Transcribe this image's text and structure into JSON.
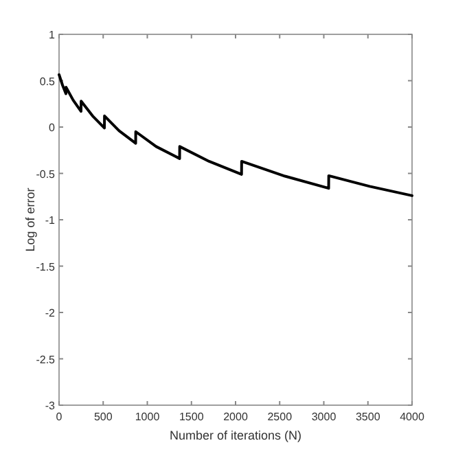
{
  "chart_data": {
    "type": "line",
    "xlabel": "Number of iterations (N)",
    "ylabel": "Log of error",
    "xlim": [
      0,
      4000
    ],
    "xticks": [
      0,
      500,
      1000,
      1500,
      2000,
      2500,
      3000,
      3500,
      4000
    ],
    "ylim": [
      -3,
      1
    ],
    "yticks": [
      -3,
      -2.5,
      -2,
      -1.5,
      -1,
      -0.5,
      0,
      0.5,
      1
    ],
    "grid": false,
    "marker": "none",
    "line_style": "solid",
    "series": [
      {
        "color": "#000000",
        "x": [
          0,
          40,
          78,
          79,
          160,
          249,
          250,
          380,
          514,
          515,
          680,
          868,
          869,
          1100,
          1366,
          1367,
          1700,
          2068,
          2069,
          2560,
          3055,
          3056,
          3520,
          4000
        ],
        "values": [
          0.565,
          0.45,
          0.36,
          0.43,
          0.29,
          0.17,
          0.28,
          0.12,
          -0.01,
          0.12,
          -0.04,
          -0.175,
          -0.05,
          -0.21,
          -0.34,
          -0.21,
          -0.37,
          -0.51,
          -0.37,
          -0.53,
          -0.66,
          -0.525,
          -0.64,
          -0.74
        ]
      }
    ]
  }
}
